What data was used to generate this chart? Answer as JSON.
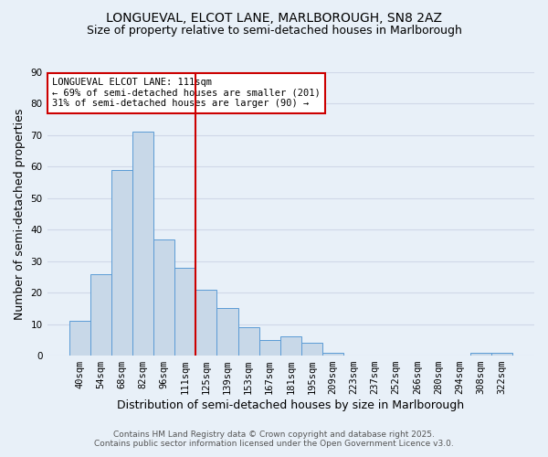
{
  "title_line1": "LONGUEVAL, ELCOT LANE, MARLBOROUGH, SN8 2AZ",
  "title_line2": "Size of property relative to semi-detached houses in Marlborough",
  "xlabel": "Distribution of semi-detached houses by size in Marlborough",
  "ylabel": "Number of semi-detached properties",
  "categories": [
    "40sqm",
    "54sqm",
    "68sqm",
    "82sqm",
    "96sqm",
    "111sqm",
    "125sqm",
    "139sqm",
    "153sqm",
    "167sqm",
    "181sqm",
    "195sqm",
    "209sqm",
    "223sqm",
    "237sqm",
    "252sqm",
    "266sqm",
    "280sqm",
    "294sqm",
    "308sqm",
    "322sqm"
  ],
  "values": [
    11,
    26,
    59,
    71,
    37,
    28,
    21,
    15,
    9,
    5,
    6,
    4,
    1,
    0,
    0,
    0,
    0,
    0,
    0,
    1,
    1
  ],
  "bar_color": "#c8d8e8",
  "bar_edge_color": "#5b9bd5",
  "vline_index": 5,
  "vline_color": "#cc0000",
  "annotation_title": "LONGUEVAL ELCOT LANE: 111sqm",
  "annotation_line2": "← 69% of semi-detached houses are smaller (201)",
  "annotation_line3": "31% of semi-detached houses are larger (90) →",
  "annotation_box_color": "#ffffff",
  "annotation_box_edge": "#cc0000",
  "ylim": [
    0,
    90
  ],
  "yticks": [
    0,
    10,
    20,
    30,
    40,
    50,
    60,
    70,
    80,
    90
  ],
  "grid_color": "#d0d8e8",
  "background_color": "#e8f0f8",
  "footer_line1": "Contains HM Land Registry data © Crown copyright and database right 2025.",
  "footer_line2": "Contains public sector information licensed under the Open Government Licence v3.0.",
  "title_fontsize": 10,
  "subtitle_fontsize": 9,
  "axis_label_fontsize": 9,
  "tick_fontsize": 7.5,
  "annotation_fontsize": 7.5,
  "footer_fontsize": 6.5
}
